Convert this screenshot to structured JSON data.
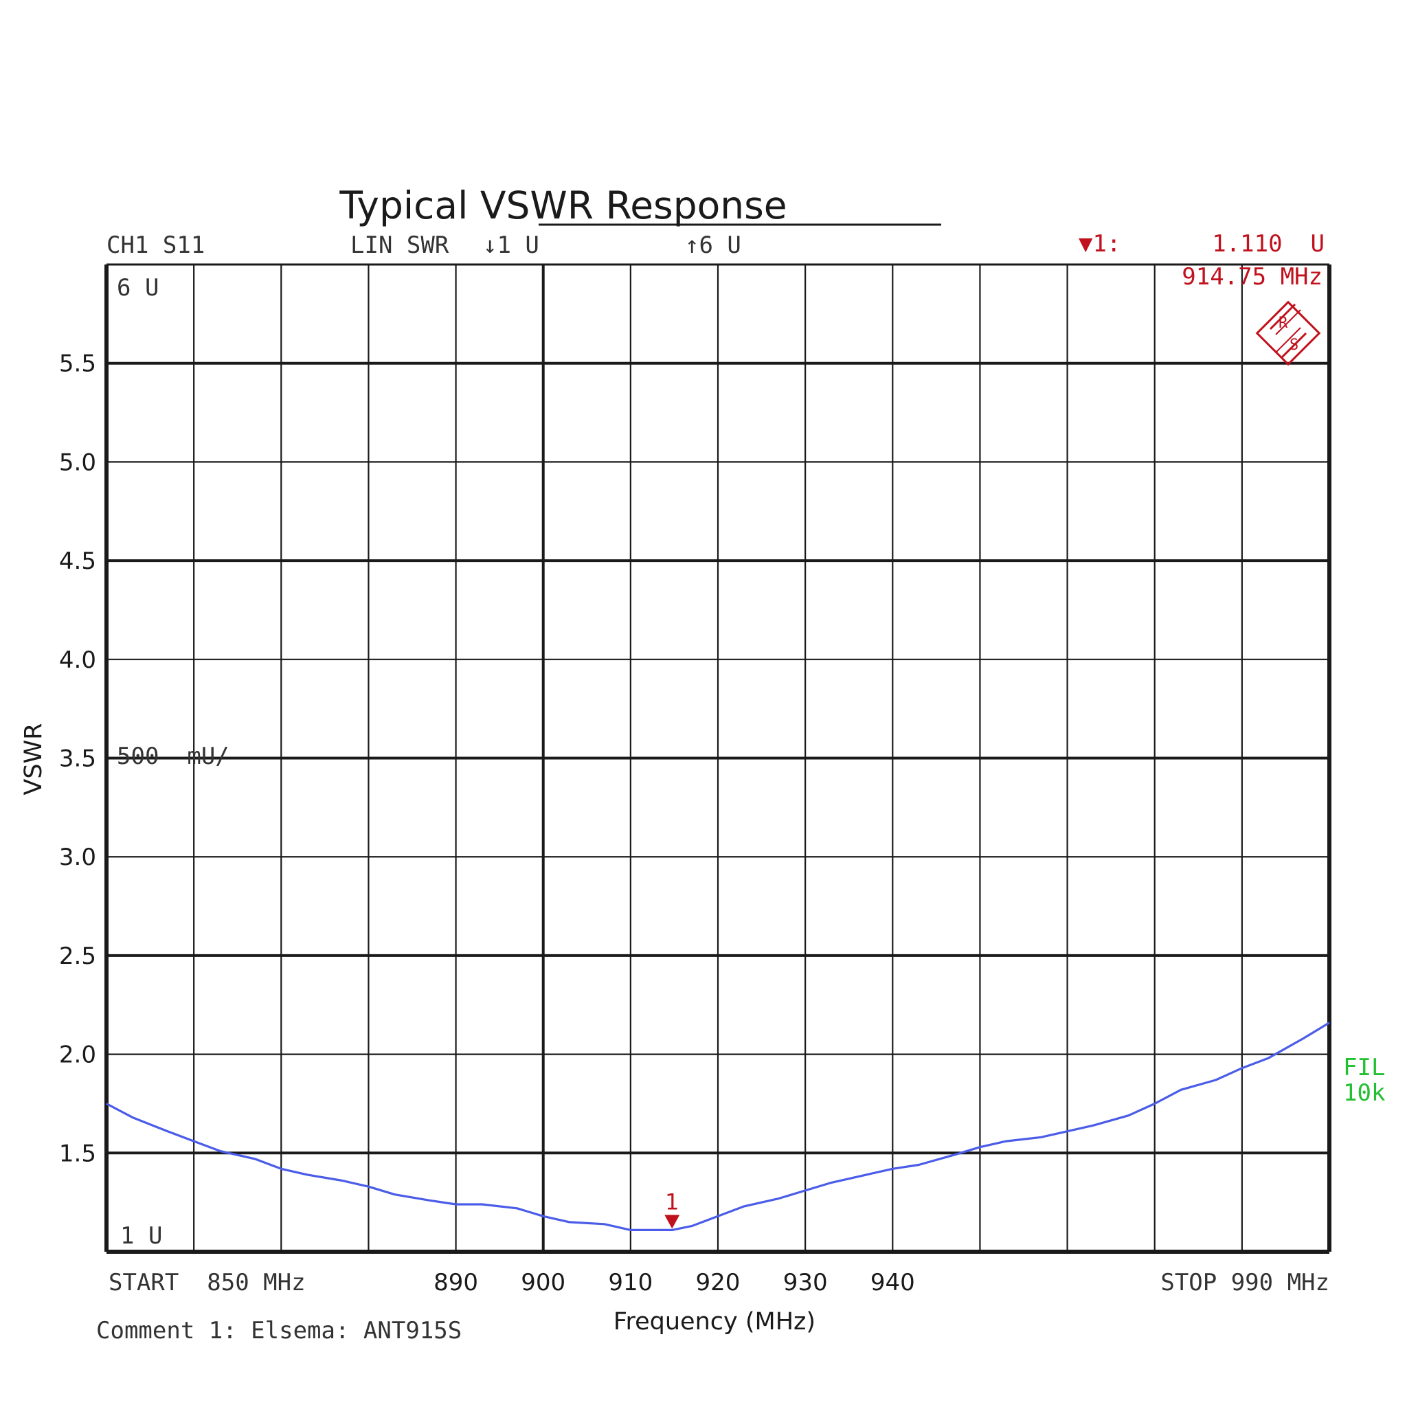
{
  "chart_data": {
    "type": "line",
    "title": "Typical VSWR Response",
    "xlabel": "Frequency (MHz)",
    "ylabel": "VSWR",
    "xlim": [
      850,
      990
    ],
    "ylim": [
      1,
      6
    ],
    "grid": true,
    "x_ticks": [
      "890",
      "900",
      "910",
      "920",
      "930",
      "940"
    ],
    "x_tick_values": [
      890,
      900,
      910,
      920,
      930,
      940
    ],
    "y_ticks": [
      "1.5",
      "2.0",
      "2.5",
      "3.0",
      "3.5",
      "4.0",
      "4.5",
      "5.0",
      "5.5"
    ],
    "y_tick_values": [
      1.5,
      2.0,
      2.5,
      3.0,
      3.5,
      4.0,
      4.5,
      5.0,
      5.5
    ],
    "series": [
      {
        "color": "#4a5ce8",
        "x": [
          850,
          853,
          857,
          860,
          863,
          867,
          870,
          873,
          877,
          880,
          883,
          887,
          890,
          893,
          897,
          900,
          903,
          907,
          910,
          912,
          914.75,
          917,
          920,
          923,
          927,
          930,
          933,
          937,
          940,
          943,
          947,
          950,
          953,
          957,
          960,
          963,
          967,
          970,
          973,
          977,
          980,
          983,
          987,
          990
        ],
        "y": [
          1.75,
          1.68,
          1.61,
          1.56,
          1.51,
          1.47,
          1.42,
          1.39,
          1.36,
          1.33,
          1.29,
          1.26,
          1.24,
          1.24,
          1.22,
          1.18,
          1.15,
          1.14,
          1.11,
          1.11,
          1.11,
          1.13,
          1.18,
          1.23,
          1.27,
          1.31,
          1.35,
          1.39,
          1.42,
          1.44,
          1.49,
          1.53,
          1.56,
          1.58,
          1.61,
          1.64,
          1.69,
          1.75,
          1.82,
          1.87,
          1.93,
          1.98,
          2.08,
          2.16
        ]
      }
    ],
    "marker": {
      "label": "1",
      "x": 914.75,
      "y": 1.11
    }
  },
  "instrument": {
    "channel": "CH1 S11",
    "format": "LIN SWR",
    "ref_bottom": "↓1 U",
    "ref_top": "↑6 U",
    "marker_readout_label": "▼1:",
    "marker_readout_value": "1.110  U",
    "marker_readout_freq": "914.75 MHz",
    "top_ref_label": "6 U",
    "scale_label": "500  mU/",
    "bottom_ref_label": "1 U",
    "start_label": "START  850 MHz",
    "stop_label": "STOP 990 MHz",
    "filter_label_1": "FIL",
    "filter_label_2": "10k",
    "comment": "Comment 1: Elsema: ANT915S",
    "logo_text": "R&S"
  },
  "colors": {
    "trace": "#4a5ce8",
    "marker": "#c0111c",
    "filter": "#22c032",
    "grid": "#1a1a1a"
  }
}
